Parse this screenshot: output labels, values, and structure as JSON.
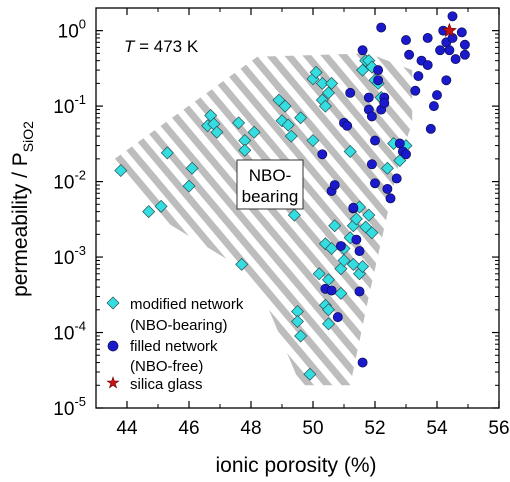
{
  "chart_data": {
    "type": "scatter",
    "xlabel": "ionic porosity (%)",
    "ylabel": "permeability / P",
    "ylabel_subscript": "SiO2",
    "xlim": [
      43,
      56
    ],
    "ylim_log10": [
      -5,
      0.3
    ],
    "log_y": true,
    "x_ticks": [
      "44",
      "46",
      "48",
      "50",
      "52",
      "54",
      "56"
    ],
    "y_tick_base": "10",
    "y_ticks": [
      {
        "exp": "0",
        "value": 1
      },
      {
        "exp": "-1",
        "value": 0.1
      },
      {
        "exp": "-2",
        "value": 0.01
      },
      {
        "exp": "-3",
        "value": 0.001
      },
      {
        "exp": "-4",
        "value": 0.0001
      },
      {
        "exp": "-5",
        "value": 1e-05
      }
    ],
    "annotation_temperature": {
      "symbol": "T",
      "text": " = 473 K"
    },
    "region_label": [
      "NBO-",
      "bearing"
    ],
    "legend_position": "bottom-left",
    "legend": [
      {
        "lines": [
          "modified network",
          "(NBO-bearing)"
        ],
        "marker": "diamond",
        "color": "#33dde0"
      },
      {
        "lines": [
          "filled network",
          "(NBO-free)"
        ],
        "marker": "circle",
        "color": "#1a1acc"
      },
      {
        "lines": [
          "silica glass"
        ],
        "marker": "star",
        "color": "#cc1111"
      }
    ],
    "region_polygon": [
      [
        43.6,
        0.02
      ],
      [
        48.2,
        0.45
      ],
      [
        51.8,
        0.5
      ],
      [
        53.2,
        0.3
      ],
      [
        53.2,
        0.06
      ],
      [
        52.8,
        0.02
      ],
      [
        51.8,
        0.0003
      ],
      [
        51.2,
        2e-05
      ],
      [
        49.6,
        2e-05
      ],
      [
        48.4,
        0.0003
      ],
      [
        47.5,
        0.0008
      ],
      [
        44.7,
        0.004
      ]
    ],
    "series": [
      {
        "name": "modified network (NBO-bearing)",
        "marker": "diamond",
        "color": "#33dde0",
        "points": [
          [
            43.8,
            0.014
          ],
          [
            44.7,
            0.004
          ],
          [
            45.1,
            0.0047
          ],
          [
            45.3,
            0.024
          ],
          [
            46.0,
            0.0087
          ],
          [
            46.1,
            0.015
          ],
          [
            46.6,
            0.055
          ],
          [
            46.7,
            0.075
          ],
          [
            46.8,
            0.058
          ],
          [
            46.9,
            0.045
          ],
          [
            47.6,
            0.06
          ],
          [
            47.8,
            0.035
          ],
          [
            47.8,
            0.026
          ],
          [
            47.7,
            0.0008
          ],
          [
            48.1,
            0.045
          ],
          [
            48.9,
            0.12
          ],
          [
            49.0,
            0.064
          ],
          [
            49.1,
            0.1
          ],
          [
            49.2,
            0.056
          ],
          [
            49.3,
            0.04
          ],
          [
            49.6,
            0.07
          ],
          [
            49.4,
            0.0036
          ],
          [
            49.5,
            0.00019
          ],
          [
            49.5,
            0.00014
          ],
          [
            49.6,
            9e-05
          ],
          [
            49.9,
            2.8e-05
          ],
          [
            50.0,
            0.035
          ],
          [
            50.0,
            0.23
          ],
          [
            50.1,
            0.28
          ],
          [
            50.3,
            0.2
          ],
          [
            50.3,
            0.12
          ],
          [
            50.4,
            0.1
          ],
          [
            50.5,
            0.15
          ],
          [
            50.6,
            0.2
          ],
          [
            50.4,
            0.0015
          ],
          [
            50.5,
            0.0005
          ],
          [
            50.4,
            0.00023
          ],
          [
            50.5,
            0.0002
          ],
          [
            50.5,
            0.00013
          ],
          [
            50.7,
            0.0026
          ],
          [
            50.9,
            0.00033
          ],
          [
            50.9,
            0.0007
          ],
          [
            51.0,
            0.0013
          ],
          [
            51.2,
            0.0018
          ],
          [
            51.3,
            0.0026
          ],
          [
            51.4,
            0.0032
          ],
          [
            51.5,
            0.0046
          ],
          [
            51.5,
            0.0006
          ],
          [
            51.6,
            0.00075
          ],
          [
            51.7,
            0.0025
          ],
          [
            51.8,
            0.0036
          ],
          [
            51.9,
            0.0021
          ],
          [
            51.2,
            0.025
          ],
          [
            51.6,
            0.3
          ],
          [
            51.7,
            0.4
          ],
          [
            51.8,
            0.4
          ],
          [
            51.9,
            0.33
          ],
          [
            52.0,
            0.22
          ],
          [
            52.1,
            0.2
          ],
          [
            52.2,
            0.13
          ],
          [
            52.4,
            0.015
          ],
          [
            52.6,
            0.032
          ],
          [
            52.8,
            0.019
          ],
          [
            53.0,
            0.03
          ],
          [
            51.0,
            0.0009
          ],
          [
            50.2,
            0.0006
          ],
          [
            50.6,
            0.0013
          ],
          [
            51.3,
            0.0008
          ]
        ]
      },
      {
        "name": "filled network (NBO-free)",
        "marker": "circle",
        "color": "#1a1acc",
        "points": [
          [
            50.3,
            0.023
          ],
          [
            50.6,
            0.0075
          ],
          [
            50.7,
            0.009
          ],
          [
            50.4,
            0.00038
          ],
          [
            50.6,
            0.00036
          ],
          [
            50.8,
            0.00016
          ],
          [
            50.9,
            0.0014
          ],
          [
            51.0,
            0.06
          ],
          [
            51.1,
            0.055
          ],
          [
            51.2,
            0.15
          ],
          [
            51.3,
            0.0044
          ],
          [
            51.3,
            0.0045
          ],
          [
            51.4,
            0.0017
          ],
          [
            51.5,
            0.0012
          ],
          [
            51.5,
            0.00035
          ],
          [
            51.6,
            4e-05
          ],
          [
            51.6,
            0.55
          ],
          [
            51.8,
            0.13
          ],
          [
            51.8,
            0.09
          ],
          [
            51.9,
            0.073
          ],
          [
            51.9,
            0.017
          ],
          [
            52.0,
            0.0095
          ],
          [
            52.0,
            0.035
          ],
          [
            52.1,
            0.3
          ],
          [
            52.1,
            0.22
          ],
          [
            52.2,
            0.09
          ],
          [
            52.2,
            1.1
          ],
          [
            52.3,
            0.13
          ],
          [
            52.3,
            0.11
          ],
          [
            52.4,
            0.008
          ],
          [
            52.5,
            0.006
          ],
          [
            52.7,
            0.011
          ],
          [
            52.8,
            0.032
          ],
          [
            52.9,
            0.025
          ],
          [
            53.0,
            0.023
          ],
          [
            53.0,
            0.75
          ],
          [
            53.1,
            0.48
          ],
          [
            53.3,
            0.16
          ],
          [
            53.4,
            0.25
          ],
          [
            53.5,
            0.4
          ],
          [
            53.7,
            0.8
          ],
          [
            53.7,
            0.35
          ],
          [
            53.8,
            0.05
          ],
          [
            53.9,
            0.1
          ],
          [
            54.0,
            0.14
          ],
          [
            54.1,
            0.55
          ],
          [
            54.2,
            1.0
          ],
          [
            54.3,
            0.22
          ],
          [
            54.3,
            0.7
          ],
          [
            54.4,
            0.55
          ],
          [
            54.5,
            1.55
          ],
          [
            54.5,
            0.8
          ],
          [
            54.6,
            0.42
          ],
          [
            54.8,
            0.95
          ],
          [
            54.9,
            0.65
          ],
          [
            54.9,
            0.48
          ]
        ]
      },
      {
        "name": "silica glass",
        "marker": "star",
        "color": "#cc1111",
        "points": [
          [
            54.4,
            1.0
          ]
        ]
      }
    ]
  }
}
